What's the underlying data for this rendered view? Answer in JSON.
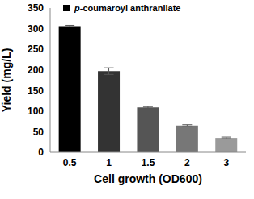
{
  "chart_data": {
    "type": "bar",
    "series_name": "p-coumaroyl anthranilate",
    "xlabel": "Cell growth (OD600)",
    "ylabel": "Yield (mg/L)",
    "categories": [
      "0.5",
      "1",
      "1.5",
      "2",
      "3"
    ],
    "values": [
      306,
      197,
      109,
      65,
      35
    ],
    "errors": [
      2,
      8,
      2,
      2,
      2
    ],
    "colors": [
      "#000000",
      "#333333",
      "#555555",
      "#777777",
      "#9a9a9a"
    ],
    "ylim": [
      0,
      350
    ],
    "yticks": [
      0,
      50,
      100,
      150,
      200,
      250,
      300,
      350
    ],
    "grid": false,
    "legend": "upper left"
  }
}
